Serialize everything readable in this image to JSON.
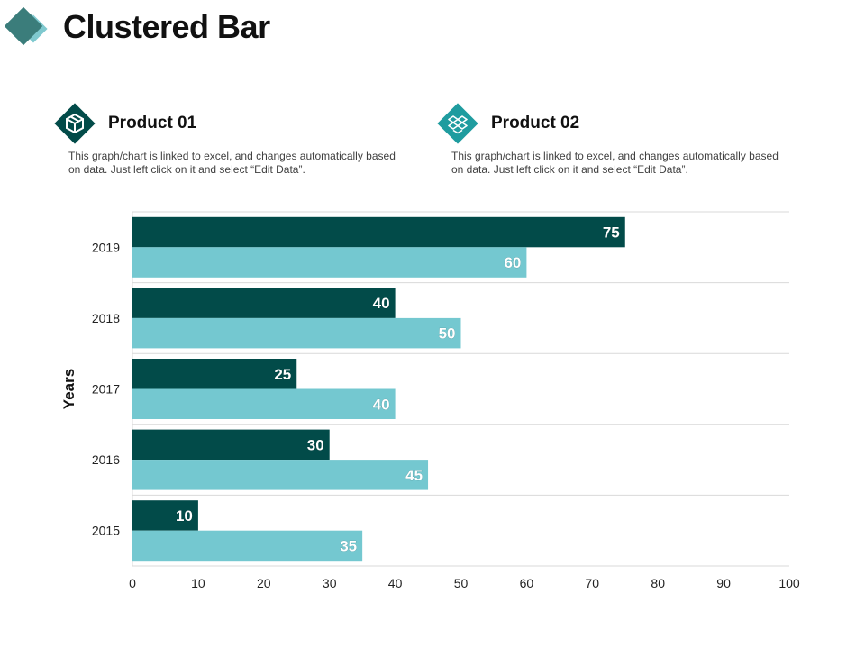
{
  "slide": {
    "title": "Clustered Bar"
  },
  "colors": {
    "accent_dark": "#024b49",
    "accent_light": "#74c8d0",
    "badge_secondary": "#1f9c9f",
    "grid": "#d9d9d9"
  },
  "products": [
    {
      "title": "Product 01",
      "description": "This graph/chart is linked to excel, and changes automatically based on data. Just left click on it and select “Edit Data”.",
      "icon": "box-icon"
    },
    {
      "title": "Product 02",
      "description": "This graph/chart is linked to excel, and changes automatically based on data. Just left click on it and select “Edit Data”.",
      "icon": "dropbox-icon"
    }
  ],
  "chart_data": {
    "type": "bar",
    "orientation": "horizontal",
    "title": "",
    "xlabel": "",
    "ylabel": "Years",
    "xlim": [
      0,
      100
    ],
    "x_ticks": [
      0,
      10,
      20,
      30,
      40,
      50,
      60,
      70,
      80,
      90,
      100
    ],
    "categories": [
      "2015",
      "2016",
      "2017",
      "2018",
      "2019"
    ],
    "series": [
      {
        "name": "Product 01",
        "values": [
          10,
          30,
          25,
          40,
          75
        ]
      },
      {
        "name": "Product 02",
        "values": [
          35,
          45,
          40,
          50,
          60
        ]
      }
    ],
    "data_labels": true,
    "grid": "horizontal category separators"
  }
}
